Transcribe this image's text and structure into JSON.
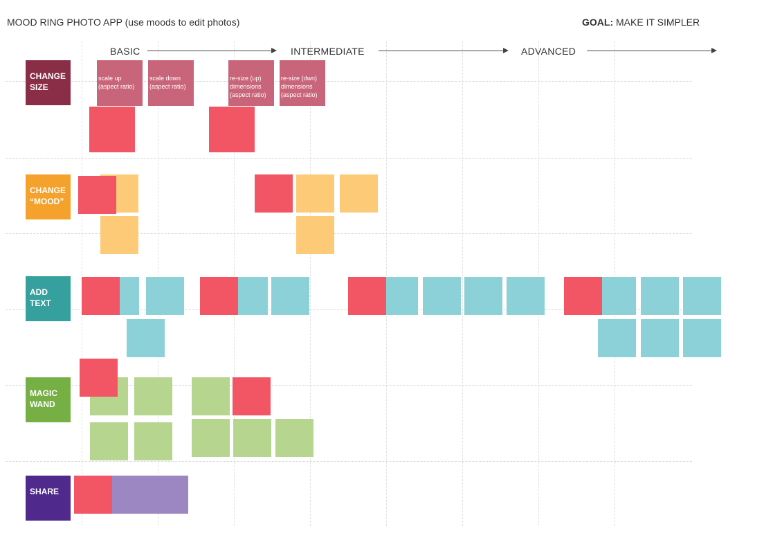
{
  "header": {
    "title": "MOOD RING PHOTO APP (use moods to edit photos)",
    "goal_label": "GOAL:",
    "goal_text": " MAKE IT SIMPLER"
  },
  "stages": [
    "BASIC",
    "INTERMEDIATE",
    "ADVANCED"
  ],
  "categories": [
    {
      "label": "CHANGE\nSIZE",
      "color": "#8A2E47"
    },
    {
      "label": "CHANGE\n“MOOD”",
      "color": "#F4A22C"
    },
    {
      "label": "ADD\nTEXT",
      "color": "#35A09E"
    },
    {
      "label": "MAGIC\nWAND",
      "color": "#76B045"
    },
    {
      "label": "SHARE",
      "color": "#4F2A8C"
    }
  ],
  "size_notes": [
    {
      "text": "scale up\n(aspect ratio)"
    },
    {
      "text": "scale down\n(aspect ratio)"
    },
    {
      "text": "re-size (up)\ndimensions\n(aspect ratio)"
    },
    {
      "text": "re-size (dwn)\ndimensions\n(aspect ratio)"
    }
  ],
  "colors": {
    "note": "#C9657A",
    "red": "#F25563",
    "yellow": "#FDCB77",
    "teal": "#8CD1D7",
    "green": "#B6D68F",
    "purple": "#9C87C2"
  }
}
